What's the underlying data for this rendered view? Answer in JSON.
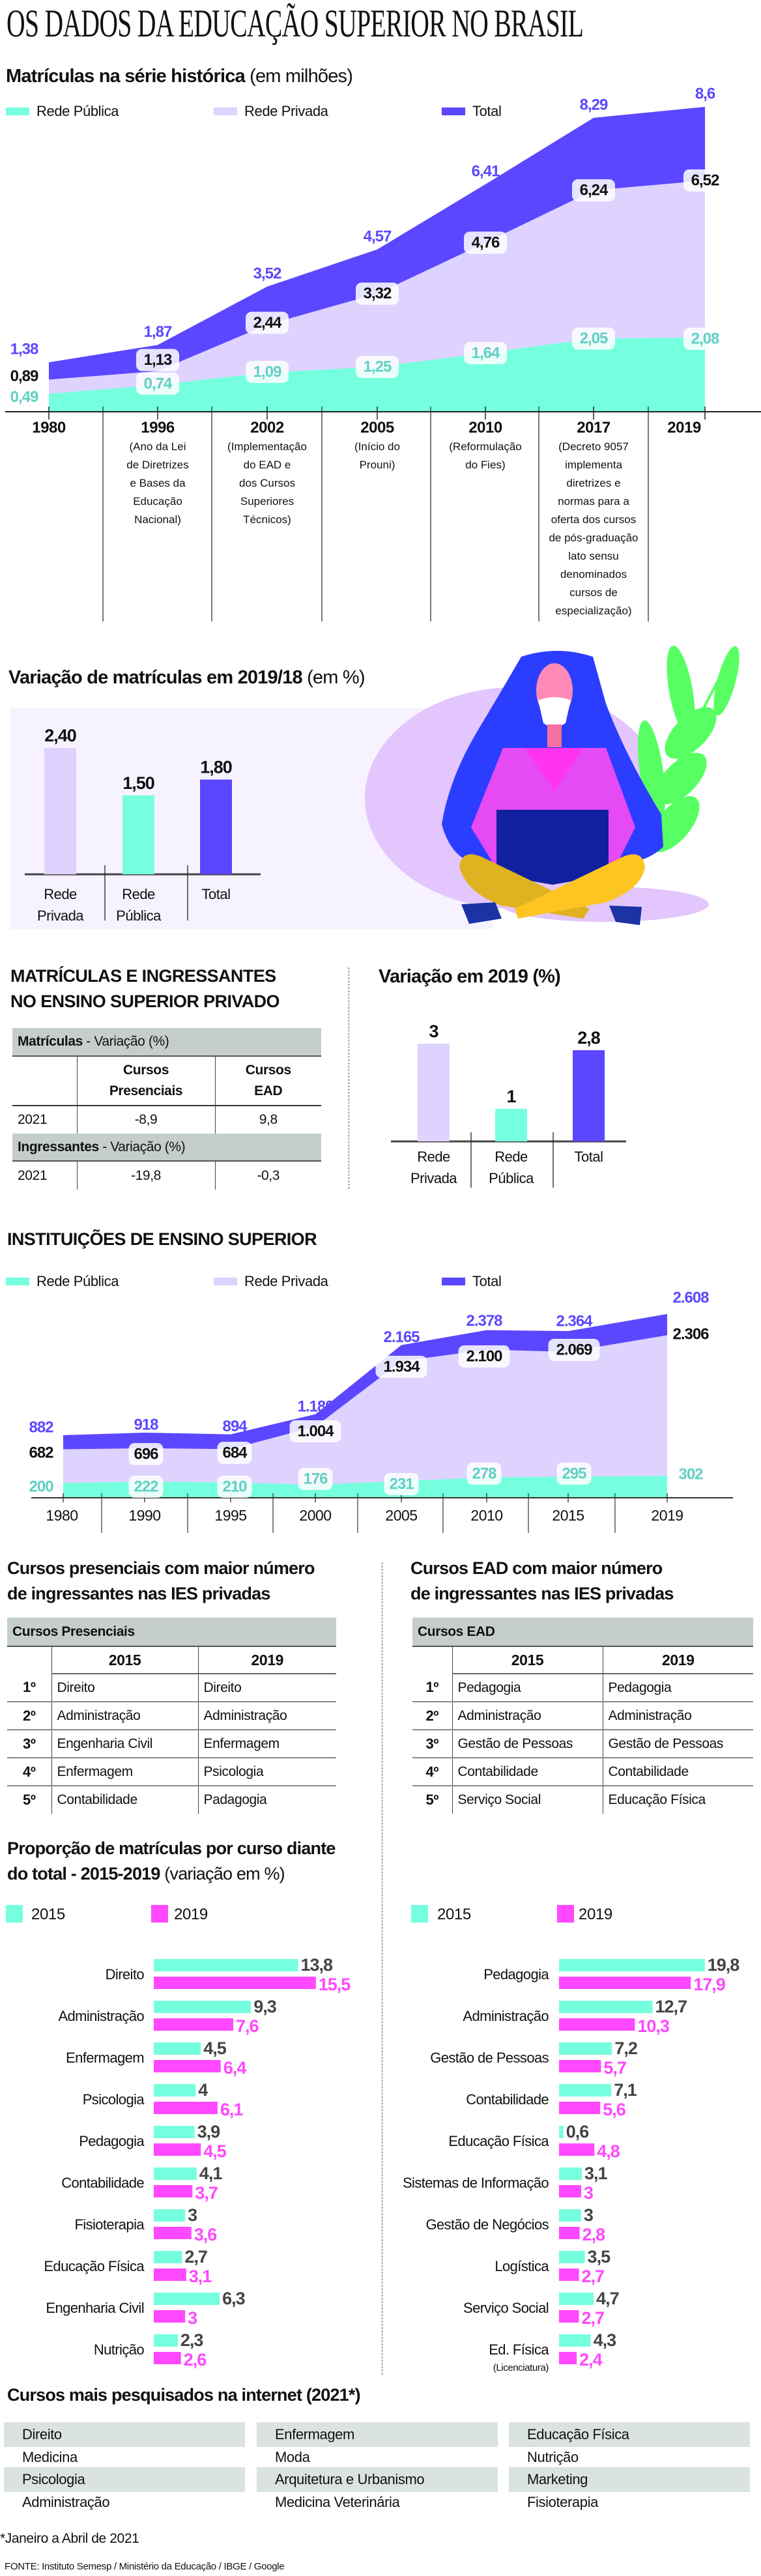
{
  "title": "OS DADOS DA EDUCAÇÃO SUPERIOR NO BRASIL",
  "colors": {
    "public": "#76ffde",
    "private": "#ded2ff",
    "total": "#5b47ff",
    "y2015": "#76ffde",
    "y2019": "#ff48ff",
    "public_label": "#5fd0c4",
    "table_header": "#c5cecd"
  },
  "legend": {
    "public": "Rede Pública",
    "private": "Rede Privada",
    "total": "Total"
  },
  "chart_data": [
    {
      "type": "area",
      "title": "Matrículas na série histórica",
      "title_suffix": "(em milhões)",
      "categories": [
        "1980",
        "1996",
        "2002",
        "2005",
        "2010",
        "2017",
        "2019"
      ],
      "notes": [
        "",
        "(Ano da Lei\nde Diretrizes\ne Bases da\nEducação\nNacional)",
        "(Implementação\ndo EAD e\ndos Cursos\nSuperiores\nTécnicos)",
        "(Início do\nProuni)",
        "(Reformulação\ndo Fies)",
        "(Decreto 9057\nimplementa\ndiretrizes e\nnormas para a\noferta dos cursos\nde pós-graduação\nlato sensu\ndenominados\ncursos de\nespecialização)",
        ""
      ],
      "series": [
        {
          "name": "Rede Pública",
          "values": [
            0.49,
            0.74,
            1.09,
            1.25,
            1.64,
            2.05,
            2.08
          ],
          "labels": [
            "0,49",
            "0,74",
            "1,09",
            "1,25",
            "1,64",
            "2,05",
            "2,08"
          ]
        },
        {
          "name": "Rede Privada",
          "values": [
            0.89,
            1.13,
            2.44,
            3.32,
            4.76,
            6.24,
            6.52
          ],
          "labels": [
            "0,89",
            "1,13",
            "2,44",
            "3,32",
            "4,76",
            "6,24",
            "6,52"
          ]
        },
        {
          "name": "Total",
          "values": [
            1.38,
            1.87,
            3.52,
            4.57,
            6.41,
            8.29,
            8.6
          ],
          "labels": [
            "1,38",
            "1,87",
            "3,52",
            "4,57",
            "6,41",
            "8,29",
            "8,6"
          ]
        }
      ],
      "grid": false
    },
    {
      "type": "bar",
      "title": "Variação de matrículas em 2019/18",
      "title_suffix": "(em %)",
      "categories": [
        "Rede\nPrivada",
        "Rede\nPública",
        "Total"
      ],
      "values": [
        2.4,
        1.5,
        1.8
      ],
      "labels": [
        "2,40",
        "1,50",
        "1,80"
      ]
    },
    {
      "type": "bar",
      "title": "Variação em 2019 (%)",
      "categories": [
        "Rede\nPrivada",
        "Rede\nPública",
        "Total"
      ],
      "values": [
        3,
        1,
        2.8
      ],
      "labels": [
        "3",
        "1",
        "2,8"
      ]
    },
    {
      "type": "area",
      "title": "INSTITUIÇÕES DE ENSINO SUPERIOR",
      "categories": [
        "1980",
        "1990",
        "1995",
        "2000",
        "2005",
        "2010",
        "2015",
        "2019"
      ],
      "series": [
        {
          "name": "Rede Pública",
          "values": [
            200,
            222,
            210,
            176,
            231,
            278,
            295,
            302
          ],
          "labels": [
            "200",
            "222",
            "210",
            "176",
            "231",
            "278",
            "295",
            "302"
          ]
        },
        {
          "name": "Rede Privada",
          "values": [
            682,
            696,
            684,
            1004,
            1934,
            2100,
            2069,
            2306
          ],
          "labels": [
            "682",
            "696",
            "684",
            "1.004",
            "1.934",
            "2.100",
            "2.069",
            "2.306"
          ]
        },
        {
          "name": "Total",
          "values": [
            882,
            918,
            894,
            1180,
            2165,
            2378,
            2364,
            2608
          ],
          "labels": [
            "882",
            "918",
            "894",
            "1.180",
            "2.165",
            "2.378",
            "2.364",
            "2.608"
          ]
        }
      ],
      "grid": false
    },
    {
      "type": "bar",
      "orientation": "horizontal",
      "title": "Proporção de matrículas por curso diante do total - 2015-2019",
      "title_suffix": "(variação em %)",
      "categories": [
        "Direito",
        "Administração",
        "Enfermagem",
        "Psicologia",
        "Pedagogia",
        "Contabilidade",
        "Fisioterapia",
        "Educação Física",
        "Engenharia Civil",
        "Nutrição"
      ],
      "series": [
        {
          "name": "2015",
          "values": [
            13.8,
            9.3,
            4.5,
            4,
            3.9,
            4.1,
            3,
            2.7,
            6.3,
            2.3
          ],
          "labels": [
            "13,8",
            "9,3",
            "4,5",
            "4",
            "3,9",
            "4,1",
            "3",
            "2,7",
            "6,3",
            "2,3"
          ]
        },
        {
          "name": "2019",
          "values": [
            15.5,
            7.6,
            6.4,
            6.1,
            4.5,
            3.7,
            3.6,
            3.1,
            3,
            2.6
          ],
          "labels": [
            "15,5",
            "7,6",
            "6,4",
            "6,1",
            "4,5",
            "3,7",
            "3,6",
            "3,1",
            "3",
            "2,6"
          ]
        }
      ]
    },
    {
      "type": "bar",
      "orientation": "horizontal",
      "categories": [
        "Pedagogia",
        "Administração",
        "Gestão de Pessoas",
        "Contabilidade",
        "Educação Física",
        "Sistemas de Informação",
        "Gestão de Negócios",
        "Logística",
        "Serviço Social",
        "Ed. Física"
      ],
      "category_sublabels": [
        "",
        "",
        "",
        "",
        "",
        "",
        "",
        "",
        "",
        "(Licenciatura)"
      ],
      "series": [
        {
          "name": "2015",
          "values": [
            19.8,
            12.7,
            7.2,
            7.1,
            0.6,
            3.1,
            3,
            3.5,
            4.7,
            4.3
          ],
          "labels": [
            "19,8",
            "12,7",
            "7,2",
            "7,1",
            "0,6",
            "3,1",
            "3",
            "3,5",
            "4,7",
            "4,3"
          ]
        },
        {
          "name": "2019",
          "values": [
            17.9,
            10.3,
            5.7,
            5.6,
            4.8,
            3,
            2.8,
            2.7,
            2.7,
            2.4
          ],
          "labels": [
            "17,9",
            "10,3",
            "5,7",
            "5,6",
            "4,8",
            "3",
            "2,8",
            "2,7",
            "2,7",
            "2,4"
          ]
        }
      ]
    }
  ],
  "privado": {
    "title_line1": "MATRÍCULAS E INGRESSANTES",
    "title_line2": "NO ENSINO SUPERIOR PRIVADO",
    "matriculas_bold": "Matrículas",
    "matriculas_rest": " - Variação (%)",
    "col_presenciais": "Cursos\nPresenciais",
    "col_ead": "Cursos\nEAD",
    "matriculas_row": {
      "year": "2021",
      "presenciais": "-8,9",
      "ead": "9,8"
    },
    "ingressantes_bold": "Ingressantes",
    "ingressantes_rest": " - Variação (%)",
    "ingressantes_row": {
      "year": "2021",
      "presenciais": "-19,8",
      "ead": "-0,3"
    }
  },
  "rank_presenciais": {
    "title_line1": "Cursos presenciais com maior número",
    "title_line2": "de ingressantes nas IES privadas",
    "header": "Cursos Presenciais",
    "cols": [
      "2015",
      "2019"
    ],
    "rows": [
      {
        "rank": "1º",
        "a": "Direito",
        "b": "Direito"
      },
      {
        "rank": "2º",
        "a": "Administração",
        "b": "Administração"
      },
      {
        "rank": "3º",
        "a": "Engenharia Civil",
        "b": "Enfermagem"
      },
      {
        "rank": "4º",
        "a": "Enfermagem",
        "b": "Psicologia"
      },
      {
        "rank": "5º",
        "a": "Contabilidade",
        "b": "Padagogia"
      }
    ]
  },
  "rank_ead": {
    "title_line1": "Cursos EAD com maior número",
    "title_line2": "de ingressantes nas IES privadas",
    "header": "Cursos EAD",
    "cols": [
      "2015",
      "2019"
    ],
    "rows": [
      {
        "rank": "1º",
        "a": "Pedagogia",
        "b": "Pedagogia"
      },
      {
        "rank": "2º",
        "a": "Administração",
        "b": "Administração"
      },
      {
        "rank": "3º",
        "a": "Gestão de Pessoas",
        "b": "Gestão de Pessoas"
      },
      {
        "rank": "4º",
        "a": "Contabilidade",
        "b": "Contabilidade"
      },
      {
        "rank": "5º",
        "a": "Serviço Social",
        "b": "Educação Física"
      }
    ]
  },
  "proporcao": {
    "title_line1": "Proporção de matrículas por curso diante",
    "title_line2_bold": "do total - 2015-2019",
    "title_line2_rest": " (variação em %)",
    "legend_2015": "2015",
    "legend_2019": "2019"
  },
  "pesquisados": {
    "title": "Cursos mais pesquisados na internet (2021*)",
    "columns": [
      [
        "Direito",
        "Medicina",
        "Psicologia",
        "Administração"
      ],
      [
        "Enfermagem",
        "Moda",
        "Arquitetura e Urbanismo",
        "Medicina Veterinária"
      ],
      [
        "Educação Física",
        "Nutrição",
        "Marketing",
        "Fisioterapia"
      ]
    ]
  },
  "footnote": "*Janeiro a Abril de 2021",
  "source": "FONTE: Instituto Semesp / Ministério da Educação / IBGE / Google"
}
